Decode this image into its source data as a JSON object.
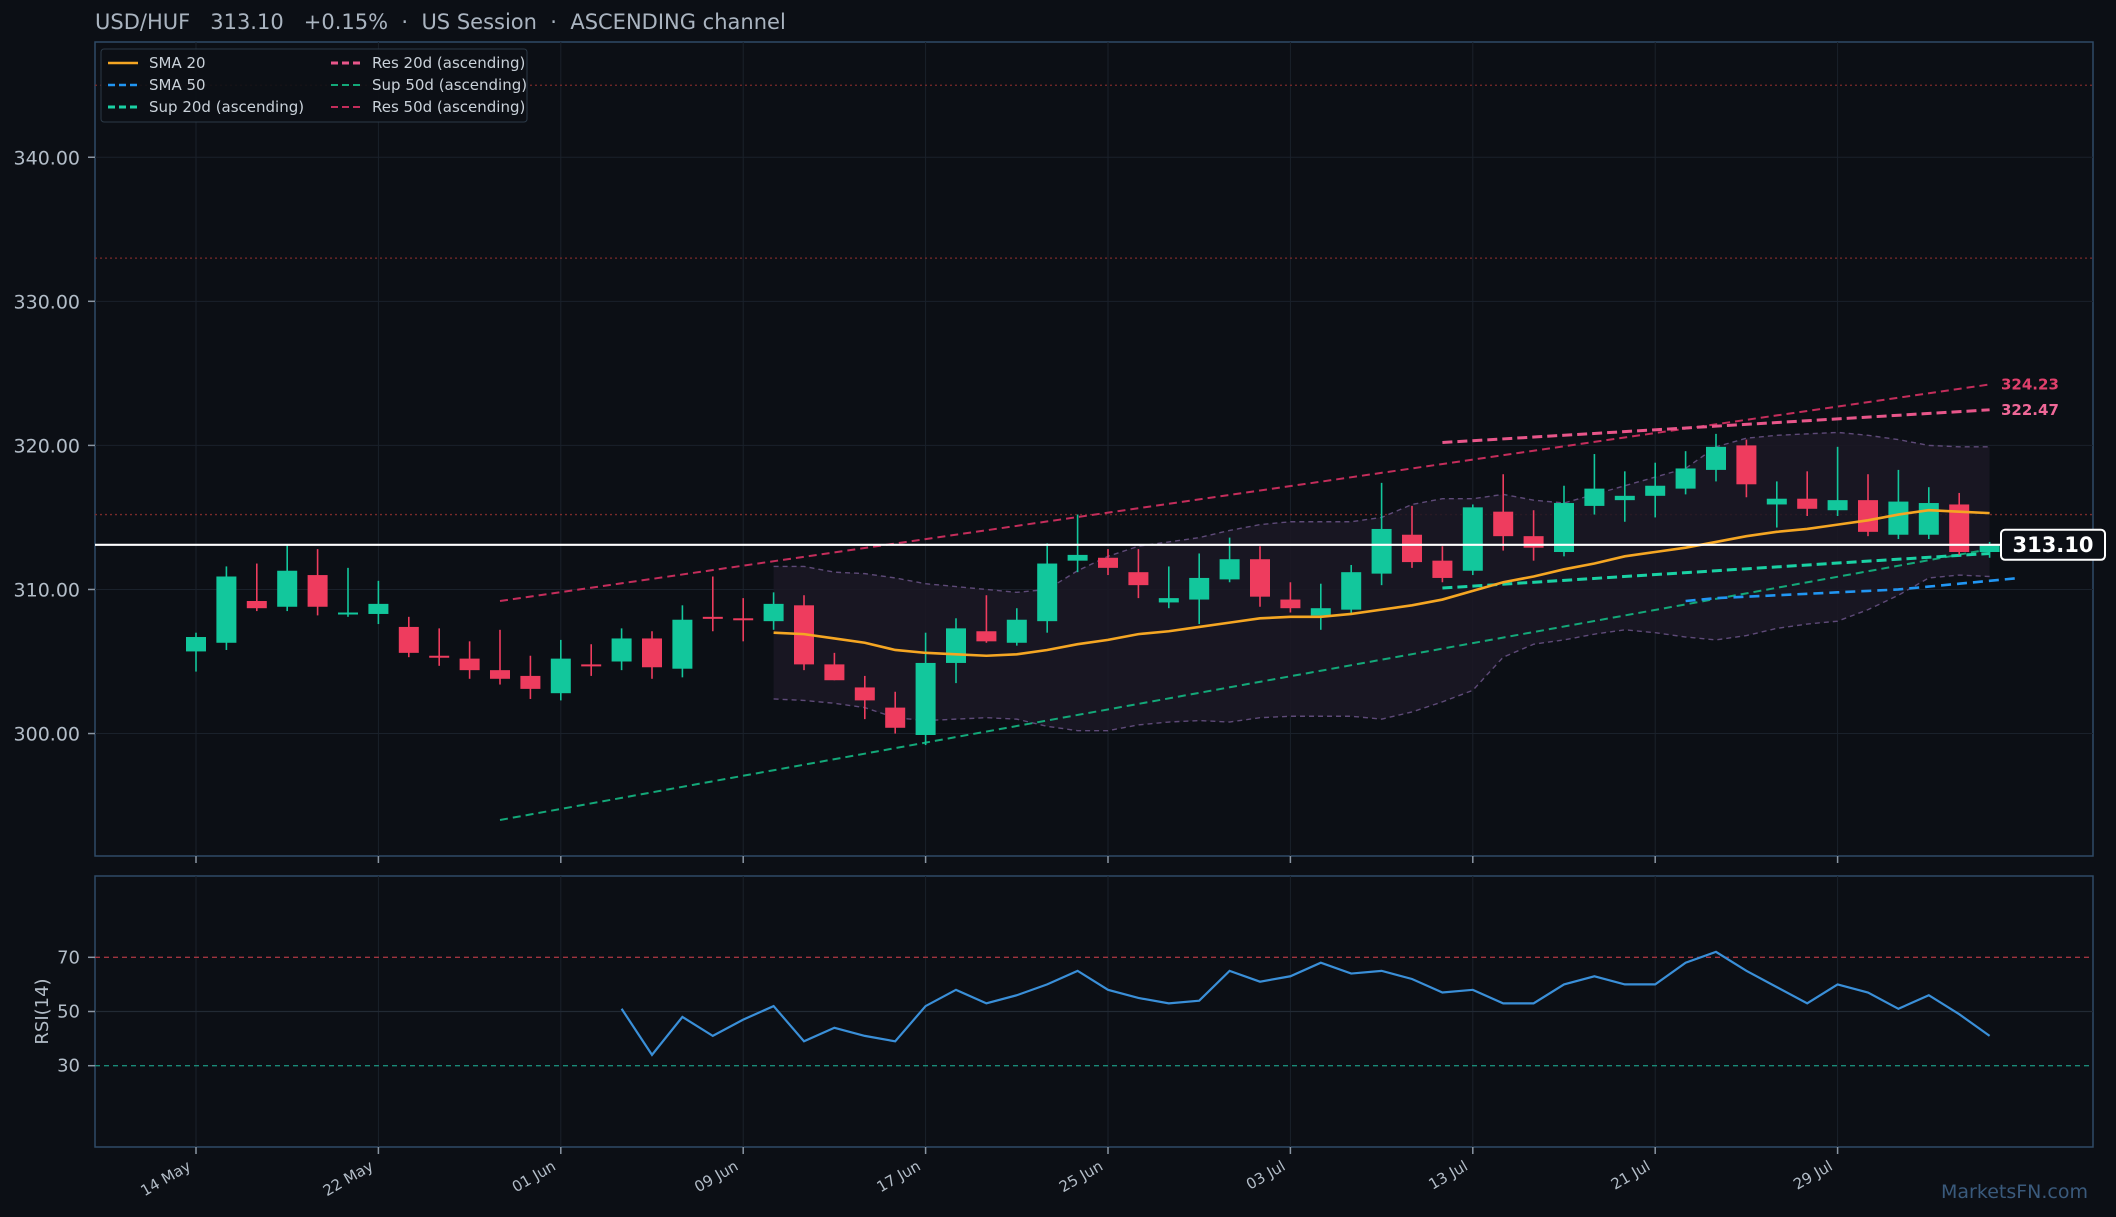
{
  "header": {
    "symbol": "USD/HUF",
    "price": "313.10",
    "change": "+0.15%",
    "session": "US Session",
    "channel": "ASCENDING channel"
  },
  "watermark": "MarketsFN.com",
  "colors": {
    "background": "#0c0f15",
    "up": "#12c79c",
    "down": "#ee3c5e",
    "sma20": "#f5a623",
    "sma50": "#2196f3",
    "support": "#1ac79a",
    "resistance": "#e8447a",
    "rsi": "#3a8fd8"
  },
  "chart_data": [
    {
      "type": "candlestick",
      "title": "",
      "ylim": [
        291.5,
        348.0
      ],
      "y_ticks": [
        300,
        310,
        320,
        330,
        340
      ],
      "y_tick_labels": [
        "300.00",
        "310.00",
        "320.00",
        "330.00",
        "340.00"
      ],
      "x_tick_labels": [
        "14 May",
        "22 May",
        "01 Jun",
        "09 Jun",
        "17 Jun",
        "25 Jun",
        "03 Jul",
        "13 Jul",
        "21 Jul",
        "29 Jul"
      ],
      "x_tick_index": [
        0,
        6,
        12,
        18,
        24,
        30,
        36,
        42,
        48,
        54
      ],
      "grid": true,
      "legend_position": "top-left",
      "legend": [
        "SMA 20",
        "SMA 50",
        "Sup 20d (ascending)",
        "Res 20d (ascending)",
        "Sup 50d (ascending)",
        "Res 50d (ascending)"
      ],
      "candles": [
        {
          "o": 305.7,
          "h": 307.0,
          "l": 304.3,
          "c": 306.7
        },
        {
          "o": 306.3,
          "h": 311.6,
          "l": 305.8,
          "c": 310.9
        },
        {
          "o": 309.2,
          "h": 311.8,
          "l": 308.5,
          "c": 308.7
        },
        {
          "o": 308.8,
          "h": 313.1,
          "l": 308.5,
          "c": 311.3
        },
        {
          "o": 311.0,
          "h": 312.8,
          "l": 308.2,
          "c": 308.8
        },
        {
          "o": 308.4,
          "h": 311.5,
          "l": 308.1,
          "c": 308.4
        },
        {
          "o": 308.3,
          "h": 310.6,
          "l": 307.6,
          "c": 309.0
        },
        {
          "o": 307.4,
          "h": 308.1,
          "l": 305.3,
          "c": 305.6
        },
        {
          "o": 305.4,
          "h": 307.3,
          "l": 304.7,
          "c": 305.3
        },
        {
          "o": 305.2,
          "h": 306.4,
          "l": 303.8,
          "c": 304.4
        },
        {
          "o": 304.4,
          "h": 307.2,
          "l": 303.4,
          "c": 303.8
        },
        {
          "o": 304.0,
          "h": 305.4,
          "l": 302.4,
          "c": 303.1
        },
        {
          "o": 302.8,
          "h": 306.5,
          "l": 302.3,
          "c": 305.2
        },
        {
          "o": 304.8,
          "h": 306.2,
          "l": 304.0,
          "c": 304.7
        },
        {
          "o": 305.0,
          "h": 307.3,
          "l": 304.4,
          "c": 306.6
        },
        {
          "o": 306.6,
          "h": 307.1,
          "l": 303.8,
          "c": 304.6
        },
        {
          "o": 304.5,
          "h": 308.9,
          "l": 303.9,
          "c": 307.9
        },
        {
          "o": 308.1,
          "h": 310.9,
          "l": 307.1,
          "c": 308.0
        },
        {
          "o": 308.0,
          "h": 309.4,
          "l": 306.4,
          "c": 307.9
        },
        {
          "o": 307.8,
          "h": 309.8,
          "l": 307.2,
          "c": 309.0
        },
        {
          "o": 308.9,
          "h": 309.6,
          "l": 304.4,
          "c": 304.8
        },
        {
          "o": 304.8,
          "h": 305.6,
          "l": 303.7,
          "c": 303.7
        },
        {
          "o": 303.2,
          "h": 304.0,
          "l": 301.0,
          "c": 302.3
        },
        {
          "o": 301.8,
          "h": 302.9,
          "l": 300.0,
          "c": 300.4
        },
        {
          "o": 299.9,
          "h": 307.0,
          "l": 299.2,
          "c": 304.9
        },
        {
          "o": 304.9,
          "h": 308.0,
          "l": 303.5,
          "c": 307.3
        },
        {
          "o": 307.1,
          "h": 309.6,
          "l": 306.3,
          "c": 306.4
        },
        {
          "o": 306.3,
          "h": 308.7,
          "l": 306.1,
          "c": 307.9
        },
        {
          "o": 307.8,
          "h": 313.2,
          "l": 307.0,
          "c": 311.8
        },
        {
          "o": 312.0,
          "h": 315.2,
          "l": 311.2,
          "c": 312.4
        },
        {
          "o": 312.2,
          "h": 312.8,
          "l": 311.0,
          "c": 311.5
        },
        {
          "o": 311.2,
          "h": 312.8,
          "l": 309.4,
          "c": 310.3
        },
        {
          "o": 309.1,
          "h": 311.6,
          "l": 308.7,
          "c": 309.4
        },
        {
          "o": 309.3,
          "h": 312.5,
          "l": 307.6,
          "c": 310.8
        },
        {
          "o": 310.7,
          "h": 313.6,
          "l": 310.5,
          "c": 312.1
        },
        {
          "o": 312.1,
          "h": 313.0,
          "l": 308.8,
          "c": 309.5
        },
        {
          "o": 309.3,
          "h": 310.5,
          "l": 308.4,
          "c": 308.7
        },
        {
          "o": 308.2,
          "h": 310.4,
          "l": 307.2,
          "c": 308.7
        },
        {
          "o": 308.6,
          "h": 311.7,
          "l": 308.3,
          "c": 311.2
        },
        {
          "o": 311.1,
          "h": 317.4,
          "l": 310.3,
          "c": 314.2
        },
        {
          "o": 313.8,
          "h": 315.8,
          "l": 311.5,
          "c": 311.9
        },
        {
          "o": 312.0,
          "h": 313.0,
          "l": 310.5,
          "c": 310.8
        },
        {
          "o": 311.3,
          "h": 315.9,
          "l": 311.0,
          "c": 315.7
        },
        {
          "o": 315.4,
          "h": 318.0,
          "l": 312.7,
          "c": 313.7
        },
        {
          "o": 313.7,
          "h": 315.5,
          "l": 312.0,
          "c": 312.9
        },
        {
          "o": 312.6,
          "h": 317.2,
          "l": 312.3,
          "c": 316.0
        },
        {
          "o": 315.8,
          "h": 319.4,
          "l": 315.2,
          "c": 317.0
        },
        {
          "o": 316.2,
          "h": 318.2,
          "l": 314.7,
          "c": 316.5
        },
        {
          "o": 316.5,
          "h": 318.8,
          "l": 315.0,
          "c": 317.2
        },
        {
          "o": 317.0,
          "h": 319.6,
          "l": 316.6,
          "c": 318.4
        },
        {
          "o": 318.3,
          "h": 320.8,
          "l": 317.5,
          "c": 319.9
        },
        {
          "o": 320.0,
          "h": 320.4,
          "l": 316.4,
          "c": 317.3
        },
        {
          "o": 315.9,
          "h": 317.5,
          "l": 314.3,
          "c": 316.3
        },
        {
          "o": 316.3,
          "h": 318.2,
          "l": 315.1,
          "c": 315.6
        },
        {
          "o": 315.5,
          "h": 319.9,
          "l": 315.1,
          "c": 316.2
        },
        {
          "o": 316.2,
          "h": 318.0,
          "l": 313.7,
          "c": 314.0
        },
        {
          "o": 313.8,
          "h": 318.3,
          "l": 313.5,
          "c": 316.1
        },
        {
          "o": 313.8,
          "h": 317.1,
          "l": 313.5,
          "c": 316.0
        },
        {
          "o": 315.9,
          "h": 316.7,
          "l": 312.4,
          "c": 312.6
        },
        {
          "o": 312.6,
          "h": 313.3,
          "l": 312.2,
          "c": 313.1
        }
      ],
      "sma20": {
        "start": 19,
        "values": [
          307.0,
          306.9,
          306.6,
          306.3,
          305.8,
          305.6,
          305.5,
          305.4,
          305.5,
          305.8,
          306.2,
          306.5,
          306.9,
          307.1,
          307.4,
          307.7,
          308.0,
          308.1,
          308.1,
          308.3,
          308.6,
          308.9,
          309.3,
          309.9,
          310.5,
          310.9,
          311.4,
          311.8,
          312.3,
          312.6,
          312.9,
          313.3,
          313.7,
          314.0,
          314.2,
          314.5,
          314.8,
          315.2,
          315.5,
          315.4,
          315.3
        ]
      },
      "sma50": {
        "start": 49,
        "values": [
          309.2,
          309.4,
          309.5,
          309.6,
          309.7,
          309.8,
          309.9,
          310.0,
          310.2,
          310.4,
          310.6,
          310.8
        ]
      },
      "bollinger": {
        "start": 19,
        "upper": [
          311.6,
          311.6,
          311.2,
          311.1,
          310.8,
          310.4,
          310.2,
          310.0,
          309.8,
          310.0,
          311.3,
          312.3,
          313.0,
          313.3,
          313.6,
          314.1,
          314.5,
          314.7,
          314.7,
          314.7,
          315.0,
          315.9,
          316.3,
          316.3,
          316.6,
          316.2,
          316.0,
          316.6,
          317.2,
          317.8,
          318.4,
          319.9,
          320.5,
          320.7,
          320.8,
          320.9,
          320.7,
          320.4,
          320.0,
          319.9,
          319.9
        ],
        "lower": [
          302.4,
          302.3,
          302.1,
          301.8,
          301.1,
          300.9,
          301.0,
          301.1,
          301.0,
          300.5,
          300.2,
          300.2,
          300.6,
          300.8,
          300.9,
          300.8,
          301.1,
          301.2,
          301.2,
          301.2,
          301.0,
          301.5,
          302.2,
          303.0,
          305.3,
          306.2,
          306.5,
          306.9,
          307.2,
          307.0,
          306.7,
          306.5,
          306.8,
          307.3,
          307.6,
          307.8,
          308.6,
          309.6,
          310.8,
          311.0,
          310.9
        ]
      },
      "support_20d": {
        "x": [
          41,
          59
        ],
        "y": [
          310.1,
          312.5
        ]
      },
      "resistance_20d": {
        "x": [
          41,
          59
        ],
        "y": [
          320.2,
          322.47
        ]
      },
      "support_50d": {
        "x": [
          10,
          59
        ],
        "y": [
          294.0,
          312.8
        ]
      },
      "resistance_50d": {
        "x": [
          10,
          59
        ],
        "y": [
          309.2,
          324.23
        ]
      },
      "level_labels": {
        "res_50d": "324.23",
        "res_20d": "322.47"
      },
      "horizontal_levels": [
        315.2,
        333.0,
        345.0
      ],
      "last_price": 313.1,
      "last_price_label": "313.10"
    },
    {
      "type": "line",
      "ylabel": "RSI(14)",
      "ylim": [
        0,
        100
      ],
      "y_ticks": [
        30,
        50,
        70
      ],
      "y_tick_labels": [
        "30",
        "50",
        "70"
      ],
      "start": 14,
      "values": [
        51,
        34,
        48,
        41,
        47,
        52,
        39,
        44,
        41,
        39,
        52,
        58,
        53,
        56,
        60,
        65,
        58,
        55,
        53,
        54,
        65,
        61,
        63,
        68,
        64,
        65,
        62,
        57,
        58,
        53,
        53,
        60,
        63,
        60,
        60,
        68,
        72,
        65,
        59,
        53,
        60,
        57,
        51,
        56,
        49,
        41
      ]
    }
  ]
}
